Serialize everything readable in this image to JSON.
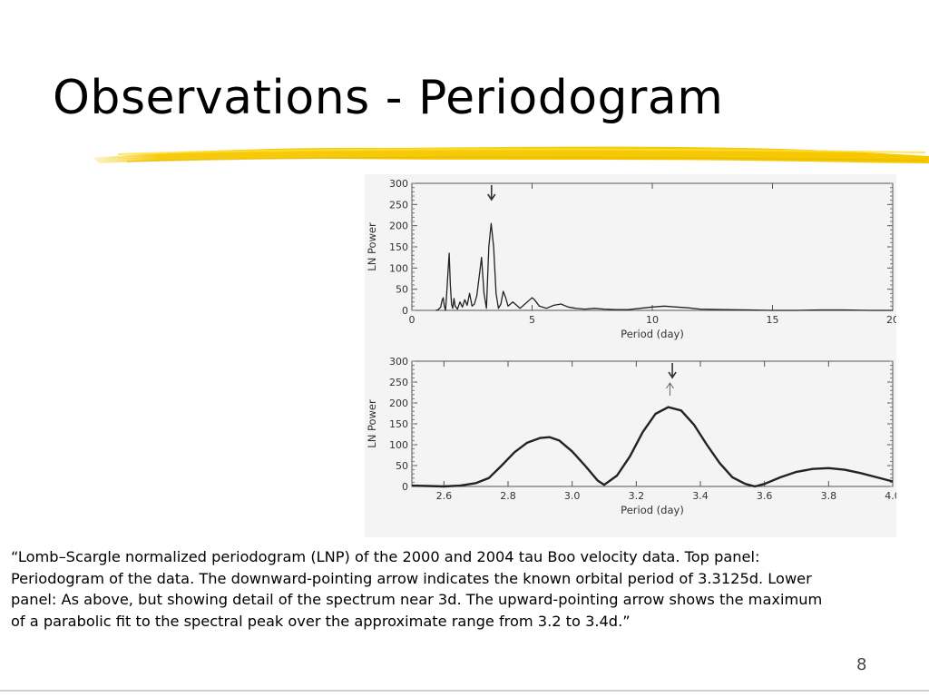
{
  "slide": {
    "title": "Observations - Periodogram",
    "page_number": "8",
    "underline_color": "#f5c800",
    "caption": "“Lomb–Scargle normalized periodogram (LNP) of the 2000 and 2004 tau Boo velocity data. Top panel: Periodogram of the data. The downward-pointing arrow indicates the known orbital period of 3.3125d. Lower panel: As above, but showing detail of the spectrum near 3d. The upward-pointing arrow shows the maximum of a parabolic fit to the spectral peak over the approximate range from 3.2 to 3.4d.”"
  },
  "chart_data": [
    {
      "type": "line",
      "xlabel": "Period (day)",
      "ylabel": "LN Power",
      "xlim": [
        0,
        20
      ],
      "ylim": [
        0,
        300
      ],
      "x_ticks": [
        0,
        5,
        10,
        15,
        20
      ],
      "y_ticks": [
        0,
        50,
        100,
        150,
        200,
        250,
        300
      ],
      "x_tick_labels": [
        "0",
        "5",
        "10",
        "15",
        "20"
      ],
      "y_tick_labels": [
        "0",
        "50",
        "100",
        "150",
        "200",
        "250",
        "300"
      ],
      "grid": false,
      "series": [
        {
          "x": [
            1.0,
            1.1,
            1.2,
            1.25,
            1.3,
            1.35,
            1.4,
            1.45,
            1.5,
            1.55,
            1.6,
            1.65,
            1.7,
            1.75,
            1.8,
            1.9,
            2.0,
            2.1,
            2.2,
            2.3,
            2.4,
            2.5,
            2.6,
            2.7,
            2.8,
            2.9,
            3.0,
            3.1,
            3.2,
            3.3,
            3.4,
            3.5,
            3.6,
            3.7,
            3.8,
            3.9,
            4.0,
            4.1,
            4.2,
            4.3,
            4.5,
            4.7,
            4.9,
            5.0,
            5.1,
            5.3,
            5.6,
            5.9,
            6.2,
            6.5,
            6.8,
            7.2,
            7.6,
            8.0,
            8.5,
            9.0,
            9.5,
            10.0,
            10.5,
            11.0,
            11.5,
            12.0,
            13.0,
            14.0,
            15.0,
            16.0,
            17.0,
            18.0,
            19.0,
            20.0
          ],
          "y": [
            0,
            2,
            8,
            22,
            30,
            10,
            0,
            40,
            90,
            135,
            60,
            15,
            5,
            28,
            10,
            3,
            20,
            8,
            25,
            12,
            40,
            10,
            15,
            35,
            80,
            125,
            40,
            5,
            150,
            205,
            150,
            40,
            5,
            15,
            45,
            30,
            10,
            15,
            20,
            15,
            5,
            15,
            25,
            30,
            25,
            10,
            5,
            12,
            15,
            8,
            5,
            3,
            5,
            3,
            2,
            2,
            5,
            8,
            10,
            8,
            6,
            3,
            2,
            1,
            0,
            0,
            1,
            1,
            0,
            0
          ]
        }
      ],
      "annotations": [
        {
          "kind": "down-arrow",
          "x": 3.3125
        }
      ]
    },
    {
      "type": "line",
      "xlabel": "Period (day)",
      "ylabel": "LN Power",
      "xlim": [
        2.5,
        4.0
      ],
      "ylim": [
        0,
        300
      ],
      "x_ticks": [
        2.6,
        2.8,
        3.0,
        3.2,
        3.4,
        3.6,
        3.8,
        4.0
      ],
      "y_ticks": [
        0,
        50,
        100,
        150,
        200,
        250,
        300
      ],
      "x_tick_labels": [
        "2.6",
        "2.8",
        "3.0",
        "3.2",
        "3.4",
        "3.6",
        "3.8",
        "4.0"
      ],
      "y_tick_labels": [
        "0",
        "50",
        "100",
        "150",
        "200",
        "250",
        "300"
      ],
      "grid": false,
      "series": [
        {
          "x": [
            2.5,
            2.55,
            2.6,
            2.65,
            2.7,
            2.74,
            2.78,
            2.82,
            2.86,
            2.9,
            2.93,
            2.96,
            3.0,
            3.04,
            3.08,
            3.1,
            3.14,
            3.18,
            3.22,
            3.26,
            3.3,
            3.34,
            3.38,
            3.42,
            3.46,
            3.5,
            3.54,
            3.57,
            3.6,
            3.65,
            3.7,
            3.75,
            3.8,
            3.85,
            3.9,
            3.95,
            4.0
          ],
          "y": [
            2,
            1,
            0,
            2,
            8,
            20,
            50,
            82,
            105,
            116,
            118,
            110,
            84,
            50,
            14,
            4,
            26,
            72,
            130,
            174,
            190,
            182,
            148,
            100,
            56,
            22,
            6,
            0,
            6,
            22,
            35,
            42,
            44,
            40,
            32,
            22,
            12
          ]
        }
      ],
      "annotations": [
        {
          "kind": "down-arrow",
          "x": 3.3125
        },
        {
          "kind": "up-arrow",
          "x": 3.305
        }
      ]
    }
  ]
}
